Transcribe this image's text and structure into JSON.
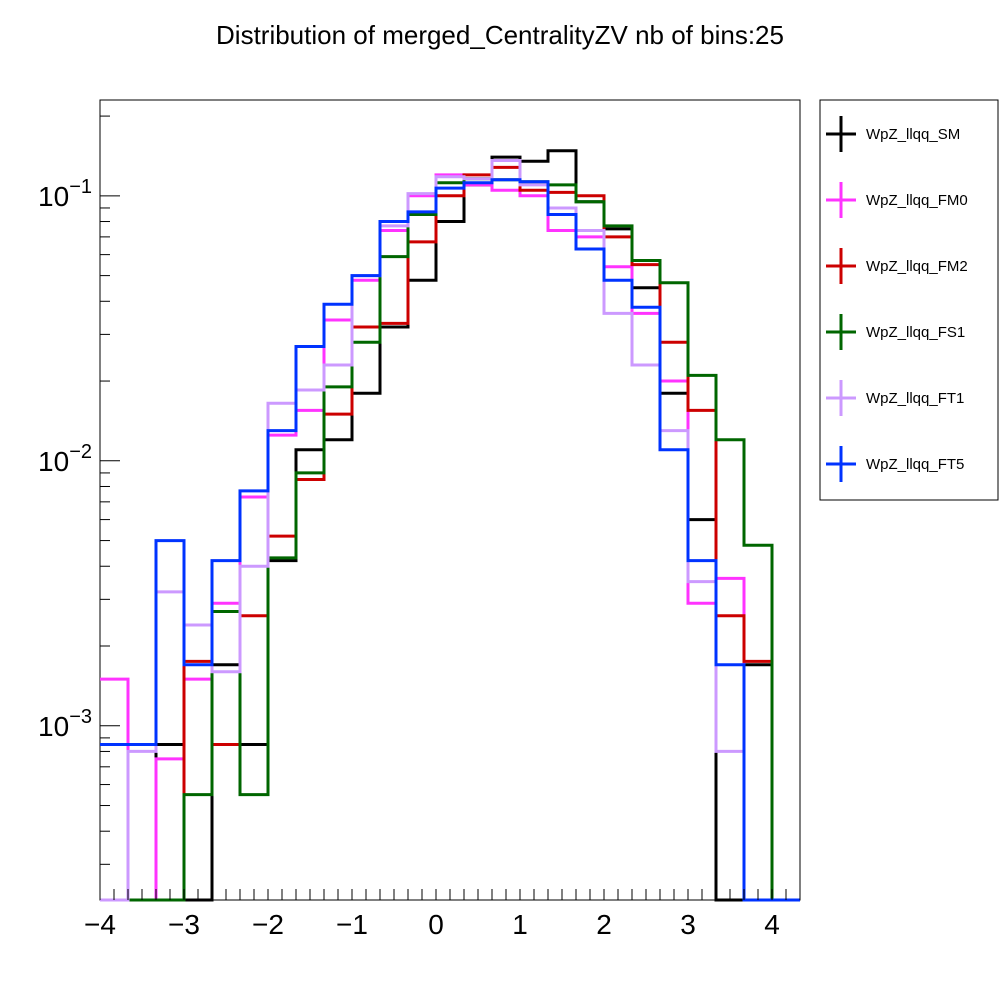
{
  "chart_data": {
    "type": "histogram",
    "title": "Distribution of merged_CentralityZV nb of bins:25",
    "x_axis": {
      "range": [
        -4,
        4.333
      ],
      "ticks": [
        -4,
        -3,
        -2,
        -1,
        0,
        1,
        2,
        3,
        4
      ],
      "tick_labels": [
        "−4",
        "−3",
        "−2",
        "−1",
        "0",
        "1",
        "2",
        "3",
        "4"
      ]
    },
    "y_axis": {
      "scale": "log",
      "range": [
        0.00022,
        0.23
      ],
      "ticks": [
        0.001,
        0.01,
        0.1
      ],
      "tick_labels": [
        {
          "base": "10",
          "exp": "−3"
        },
        {
          "base": "10",
          "exp": "−2"
        },
        {
          "base": "10",
          "exp": "−1"
        }
      ]
    },
    "bin_edges": [
      -4,
      -3.6667,
      -3.3333,
      -3.0,
      -2.6667,
      -2.3333,
      -2.0,
      -1.6667,
      -1.3333,
      -1.0,
      -0.6667,
      -0.3333,
      0.0,
      0.3333,
      0.6667,
      1.0,
      1.3333,
      1.6667,
      2.0,
      2.3333,
      2.6667,
      3.0,
      3.3333,
      3.6667,
      4.0,
      4.3333
    ],
    "legend": {
      "position": "right"
    },
    "series": [
      {
        "name": "WpZ_llqq_SM",
        "color": "#000000",
        "values": [
          0,
          0,
          0.00085,
          0,
          0.0017,
          0.00085,
          0.0042,
          0.011,
          0.012,
          0.018,
          0.032,
          0.048,
          0.08,
          0.11,
          0.14,
          0.135,
          0.148,
          0.095,
          0.075,
          0.045,
          0.018,
          0.006,
          0,
          0.0017,
          0
        ]
      },
      {
        "name": "WpZ_llqq_FM0",
        "color": "#ff33ff",
        "values": [
          0.0015,
          0,
          0.00075,
          0.0015,
          0.0029,
          0.0073,
          0.0125,
          0.0155,
          0.034,
          0.048,
          0.074,
          0.1,
          0.12,
          0.11,
          0.105,
          0.1,
          0.074,
          0.07,
          0.054,
          0.036,
          0.02,
          0.0029,
          0.0036,
          0,
          0
        ]
      },
      {
        "name": "WpZ_llqq_FM2",
        "color": "#cc0000",
        "values": [
          0,
          0,
          0,
          0.00175,
          0.00085,
          0.0026,
          0.0052,
          0.0085,
          0.015,
          0.032,
          0.033,
          0.067,
          0.1,
          0.12,
          0.128,
          0.105,
          0.103,
          0.1,
          0.07,
          0.055,
          0.028,
          0.0155,
          0.0026,
          0.00175,
          0
        ]
      },
      {
        "name": "WpZ_llqq_FS1",
        "color": "#006600",
        "values": [
          0,
          0,
          0,
          0.00055,
          0.0027,
          0.00055,
          0.0043,
          0.009,
          0.019,
          0.028,
          0.059,
          0.085,
          0.112,
          0.116,
          0.115,
          0.113,
          0.11,
          0.095,
          0.077,
          0.057,
          0.047,
          0.021,
          0.012,
          0.0048,
          0
        ]
      },
      {
        "name": "WpZ_llqq_FT1",
        "color": "#cc99ff",
        "values": [
          0,
          0.0008,
          0.0032,
          0.0024,
          0.0016,
          0.004,
          0.0165,
          0.0185,
          0.023,
          0.05,
          0.077,
          0.102,
          0.118,
          0.116,
          0.136,
          0.11,
          0.09,
          0.074,
          0.036,
          0.023,
          0.013,
          0.0035,
          0.0008,
          0,
          0
        ]
      },
      {
        "name": "WpZ_llqq_FT5",
        "color": "#0033ff",
        "values": [
          0.00085,
          0.00085,
          0.005,
          0.0017,
          0.0042,
          0.0077,
          0.013,
          0.027,
          0.039,
          0.05,
          0.08,
          0.087,
          0.107,
          0.112,
          0.115,
          0.113,
          0.085,
          0.063,
          0.048,
          0.038,
          0.011,
          0.0042,
          0.0017,
          0,
          0
        ]
      }
    ]
  }
}
